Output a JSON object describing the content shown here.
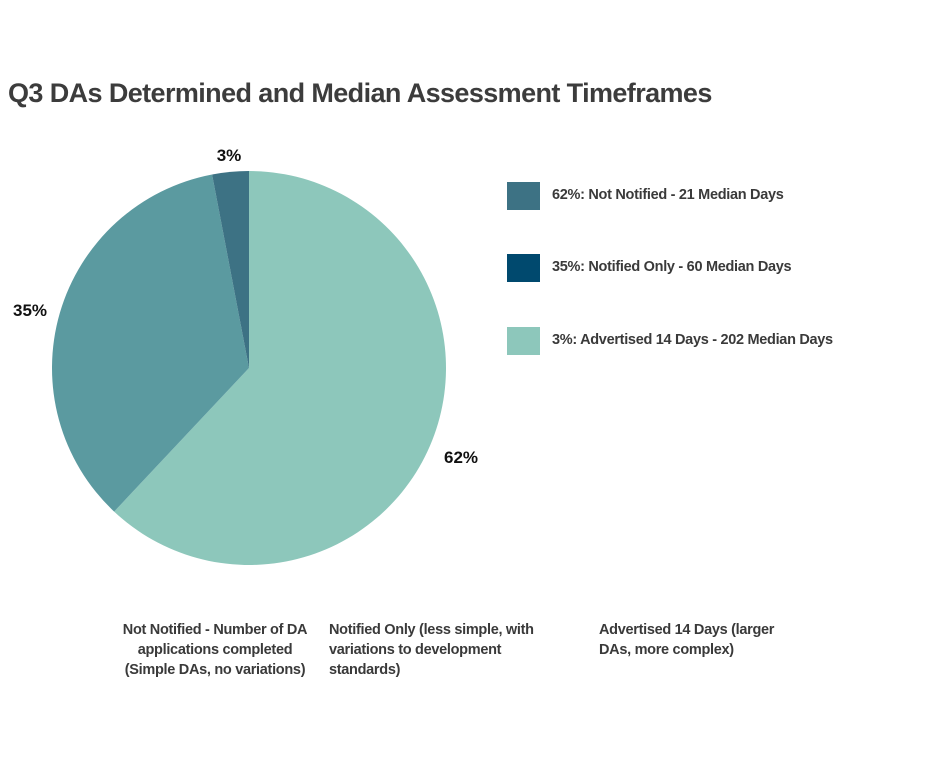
{
  "title": "Q3 DAs Determined and Median Assessment Timeframes",
  "colors": {
    "not_notified_slice": "#5b9aa0",
    "notified_only_slice": "#3d7284",
    "advertised_slice": "#8dc7bb",
    "legend_1": "#3d7284",
    "legend_2": "#00496e",
    "legend_3": "#8dc7bb"
  },
  "chart_data": {
    "type": "pie",
    "title": "Q3 DAs Determined and Median Assessment Timeframes",
    "slices": [
      {
        "name": "Not Notified",
        "value": 62,
        "label": "62%",
        "color": "#8dc7bb"
      },
      {
        "name": "Notified Only",
        "value": 35,
        "label": "35%",
        "color": "#5b9aa0"
      },
      {
        "name": "Advertised 14 Days",
        "value": 3,
        "label": "3%",
        "color": "#3d7284"
      }
    ],
    "legend": [
      {
        "label": "62%: Not Notified - 21 Median Days",
        "color": "#3d7284"
      },
      {
        "label": "35%: Notified Only - 60 Median Days",
        "color": "#00496e"
      },
      {
        "label": "3%: Advertised 14 Days - 202 Median Days",
        "color": "#8dc7bb"
      }
    ],
    "legend_position": "right"
  },
  "notes": {
    "not_notified": "Not Notified - Number of DA applications completed (Simple DAs, no variations)",
    "notified_only": "Notified Only (less simple, with variations to development standards)",
    "advertised": "Advertised 14 Days (larger DAs, more complex)"
  }
}
